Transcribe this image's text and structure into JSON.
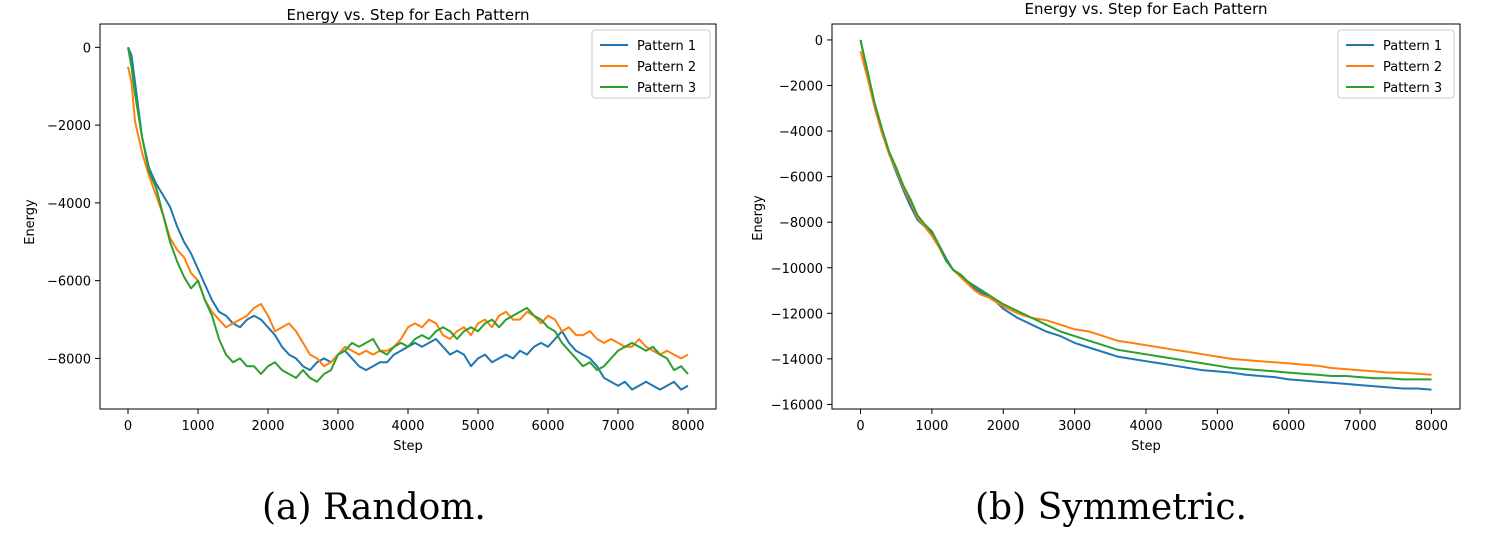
{
  "captions": {
    "left": "(a) Random.",
    "right": "(b) Symmetric."
  },
  "colors": {
    "pattern1": "#1f77b4",
    "pattern2": "#ff7f0e",
    "pattern3": "#2ca02c"
  },
  "chart_data": [
    {
      "type": "line",
      "title": "Energy vs. Step for Each Pattern",
      "xlabel": "Step",
      "ylabel": "Energy",
      "xlim": [
        -400,
        8400
      ],
      "ylim": [
        -9300,
        600
      ],
      "xticks": [
        0,
        1000,
        2000,
        3000,
        4000,
        5000,
        6000,
        7000,
        8000
      ],
      "yticks": [
        0,
        -2000,
        -4000,
        -6000,
        -8000
      ],
      "ytick_labels": [
        "0",
        "−2000",
        "−4000",
        "−6000",
        "−8000"
      ],
      "legend": "top-right",
      "grid": false,
      "series": [
        {
          "name": "Pattern 1",
          "color": "#1f77b4",
          "x": [
            0,
            50,
            100,
            200,
            300,
            400,
            500,
            600,
            700,
            800,
            900,
            1000,
            1100,
            1200,
            1300,
            1400,
            1500,
            1600,
            1700,
            1800,
            1900,
            2000,
            2100,
            2200,
            2300,
            2400,
            2500,
            2600,
            2700,
            2800,
            2900,
            3000,
            3100,
            3200,
            3300,
            3400,
            3500,
            3600,
            3700,
            3800,
            3900,
            4000,
            4100,
            4200,
            4300,
            4400,
            4500,
            4600,
            4700,
            4800,
            4900,
            5000,
            5100,
            5200,
            5300,
            5400,
            5500,
            5600,
            5700,
            5800,
            5900,
            6000,
            6100,
            6200,
            6300,
            6400,
            6500,
            6600,
            6700,
            6800,
            6900,
            7000,
            7100,
            7200,
            7300,
            7400,
            7500,
            7600,
            7700,
            7800,
            7900,
            8000
          ],
          "y": [
            0,
            -200,
            -900,
            -2300,
            -3100,
            -3500,
            -3800,
            -4100,
            -4600,
            -5000,
            -5300,
            -5700,
            -6100,
            -6500,
            -6800,
            -6900,
            -7100,
            -7200,
            -7000,
            -6900,
            -7000,
            -7200,
            -7400,
            -7700,
            -7900,
            -8000,
            -8200,
            -8300,
            -8100,
            -8000,
            -8100,
            -7900,
            -7800,
            -8000,
            -8200,
            -8300,
            -8200,
            -8100,
            -8100,
            -7900,
            -7800,
            -7700,
            -7600,
            -7700,
            -7600,
            -7500,
            -7700,
            -7900,
            -7800,
            -7900,
            -8200,
            -8000,
            -7900,
            -8100,
            -8000,
            -7900,
            -8000,
            -7800,
            -7900,
            -7700,
            -7600,
            -7700,
            -7500,
            -7300,
            -7600,
            -7800,
            -7900,
            -8000,
            -8200,
            -8500,
            -8600,
            -8700,
            -8600,
            -8800,
            -8700,
            -8600,
            -8700,
            -8800,
            -8700,
            -8600,
            -8800,
            -8700
          ]
        },
        {
          "name": "Pattern 2",
          "color": "#ff7f0e",
          "x": [
            0,
            50,
            100,
            200,
            300,
            400,
            500,
            600,
            700,
            800,
            900,
            1000,
            1100,
            1200,
            1300,
            1400,
            1500,
            1600,
            1700,
            1800,
            1900,
            2000,
            2100,
            2200,
            2300,
            2400,
            2500,
            2600,
            2700,
            2800,
            2900,
            3000,
            3100,
            3200,
            3300,
            3400,
            3500,
            3600,
            3700,
            3800,
            3900,
            4000,
            4100,
            4200,
            4300,
            4400,
            4500,
            4600,
            4700,
            4800,
            4900,
            5000,
            5100,
            5200,
            5300,
            5400,
            5500,
            5600,
            5700,
            5800,
            5900,
            6000,
            6100,
            6200,
            6300,
            6400,
            6500,
            6600,
            6700,
            6800,
            6900,
            7000,
            7100,
            7200,
            7300,
            7400,
            7500,
            7600,
            7700,
            7800,
            7900,
            8000
          ],
          "y": [
            -500,
            -900,
            -1900,
            -2700,
            -3300,
            -3800,
            -4300,
            -4900,
            -5200,
            -5400,
            -5800,
            -6000,
            -6500,
            -6800,
            -7000,
            -7200,
            -7100,
            -7000,
            -6900,
            -6700,
            -6600,
            -6900,
            -7300,
            -7200,
            -7100,
            -7300,
            -7600,
            -7900,
            -8000,
            -8200,
            -8100,
            -7900,
            -7700,
            -7800,
            -7900,
            -7800,
            -7900,
            -7800,
            -7800,
            -7700,
            -7500,
            -7200,
            -7100,
            -7200,
            -7000,
            -7100,
            -7400,
            -7500,
            -7300,
            -7200,
            -7400,
            -7100,
            -7000,
            -7200,
            -6900,
            -6800,
            -7000,
            -7000,
            -6800,
            -6900,
            -7100,
            -6900,
            -7000,
            -7300,
            -7200,
            -7400,
            -7400,
            -7300,
            -7500,
            -7600,
            -7500,
            -7600,
            -7700,
            -7700,
            -7500,
            -7700,
            -7800,
            -7900,
            -7800,
            -7900,
            -8000,
            -7900
          ]
        },
        {
          "name": "Pattern 3",
          "color": "#2ca02c",
          "x": [
            0,
            50,
            100,
            200,
            300,
            400,
            500,
            600,
            700,
            800,
            900,
            1000,
            1100,
            1200,
            1300,
            1400,
            1500,
            1600,
            1700,
            1800,
            1900,
            2000,
            2100,
            2200,
            2300,
            2400,
            2500,
            2600,
            2700,
            2800,
            2900,
            3000,
            3100,
            3200,
            3300,
            3400,
            3500,
            3600,
            3700,
            3800,
            3900,
            4000,
            4100,
            4200,
            4300,
            4400,
            4500,
            4600,
            4700,
            4800,
            4900,
            5000,
            5100,
            5200,
            5300,
            5400,
            5500,
            5600,
            5700,
            5800,
            5900,
            6000,
            6100,
            6200,
            6300,
            6400,
            6500,
            6600,
            6700,
            6800,
            6900,
            7000,
            7100,
            7200,
            7300,
            7400,
            7500,
            7600,
            7700,
            7800,
            7900,
            8000
          ],
          "y": [
            0,
            -500,
            -1200,
            -2300,
            -3200,
            -3600,
            -4300,
            -5000,
            -5500,
            -5900,
            -6200,
            -6000,
            -6500,
            -6900,
            -7500,
            -7900,
            -8100,
            -8000,
            -8200,
            -8200,
            -8400,
            -8200,
            -8100,
            -8300,
            -8400,
            -8500,
            -8300,
            -8500,
            -8600,
            -8400,
            -8300,
            -7900,
            -7800,
            -7600,
            -7700,
            -7600,
            -7500,
            -7800,
            -7900,
            -7700,
            -7600,
            -7700,
            -7500,
            -7400,
            -7500,
            -7300,
            -7200,
            -7300,
            -7500,
            -7300,
            -7200,
            -7300,
            -7100,
            -7000,
            -7200,
            -7000,
            -6900,
            -6800,
            -6700,
            -6900,
            -7000,
            -7200,
            -7300,
            -7600,
            -7800,
            -8000,
            -8200,
            -8100,
            -8300,
            -8200,
            -8000,
            -7800,
            -7700,
            -7600,
            -7700,
            -7800,
            -7700,
            -7900,
            -8000,
            -8300,
            -8200,
            -8400
          ]
        }
      ]
    },
    {
      "type": "line",
      "title": "Energy vs. Step for Each Pattern",
      "xlabel": "Step",
      "ylabel": "Energy",
      "xlim": [
        -400,
        8400
      ],
      "ylim": [
        -16200,
        700
      ],
      "xticks": [
        0,
        1000,
        2000,
        3000,
        4000,
        5000,
        6000,
        7000,
        8000
      ],
      "yticks": [
        0,
        -2000,
        -4000,
        -6000,
        -8000,
        -10000,
        -12000,
        -14000,
        -16000
      ],
      "ytick_labels": [
        "0",
        "−2000",
        "−4000",
        "−6000",
        "−8000",
        "−10000",
        "−12000",
        "−14000",
        "−16000"
      ],
      "legend": "top-right",
      "grid": false,
      "series": [
        {
          "name": "Pattern 1",
          "color": "#1f77b4",
          "x": [
            0,
            100,
            200,
            300,
            400,
            500,
            600,
            700,
            800,
            900,
            1000,
            1100,
            1200,
            1300,
            1400,
            1500,
            1600,
            1700,
            1800,
            1900,
            2000,
            2200,
            2400,
            2600,
            2800,
            3000,
            3200,
            3400,
            3600,
            3800,
            4000,
            4200,
            4400,
            4600,
            4800,
            5000,
            5200,
            5400,
            5600,
            5800,
            6000,
            6200,
            6400,
            6600,
            6800,
            7000,
            7200,
            7400,
            7600,
            7800,
            8000
          ],
          "y": [
            0,
            -1500,
            -2900,
            -4000,
            -5000,
            -5800,
            -6600,
            -7300,
            -7900,
            -8200,
            -8500,
            -9000,
            -9600,
            -10100,
            -10300,
            -10600,
            -10900,
            -11100,
            -11300,
            -11500,
            -11800,
            -12200,
            -12500,
            -12800,
            -13000,
            -13300,
            -13500,
            -13700,
            -13900,
            -14000,
            -14100,
            -14200,
            -14300,
            -14400,
            -14500,
            -14550,
            -14600,
            -14700,
            -14750,
            -14800,
            -14900,
            -14950,
            -15000,
            -15050,
            -15100,
            -15150,
            -15200,
            -15250,
            -15300,
            -15300,
            -15350
          ]
        },
        {
          "name": "Pattern 2",
          "color": "#ff7f0e",
          "x": [
            0,
            100,
            200,
            300,
            400,
            500,
            600,
            700,
            800,
            900,
            1000,
            1100,
            1200,
            1300,
            1400,
            1500,
            1600,
            1700,
            1800,
            1900,
            2000,
            2200,
            2400,
            2600,
            2800,
            3000,
            3200,
            3400,
            3600,
            3800,
            4000,
            4200,
            4400,
            4600,
            4800,
            5000,
            5200,
            5400,
            5600,
            5800,
            6000,
            6200,
            6400,
            6600,
            6800,
            7000,
            7200,
            7400,
            7600,
            7800,
            8000
          ],
          "y": [
            -500,
            -1700,
            -3000,
            -4100,
            -5000,
            -5700,
            -6500,
            -7100,
            -7800,
            -8200,
            -8600,
            -9100,
            -9700,
            -10100,
            -10400,
            -10700,
            -11000,
            -11200,
            -11300,
            -11500,
            -11700,
            -12000,
            -12200,
            -12300,
            -12500,
            -12700,
            -12800,
            -13000,
            -13200,
            -13300,
            -13400,
            -13500,
            -13600,
            -13700,
            -13800,
            -13900,
            -14000,
            -14050,
            -14100,
            -14150,
            -14200,
            -14250,
            -14300,
            -14400,
            -14450,
            -14500,
            -14550,
            -14600,
            -14600,
            -14650,
            -14700
          ]
        },
        {
          "name": "Pattern 3",
          "color": "#2ca02c",
          "x": [
            0,
            100,
            200,
            300,
            400,
            500,
            600,
            700,
            800,
            900,
            1000,
            1100,
            1200,
            1300,
            1400,
            1500,
            1600,
            1700,
            1800,
            1900,
            2000,
            2200,
            2400,
            2600,
            2800,
            3000,
            3200,
            3400,
            3600,
            3800,
            4000,
            4200,
            4400,
            4600,
            4800,
            5000,
            5200,
            5400,
            5600,
            5800,
            6000,
            6200,
            6400,
            6600,
            6800,
            7000,
            7200,
            7400,
            7600,
            7800,
            8000
          ],
          "y": [
            0,
            -1400,
            -2800,
            -3900,
            -4900,
            -5600,
            -6400,
            -7000,
            -7700,
            -8100,
            -8400,
            -9000,
            -9700,
            -10100,
            -10300,
            -10600,
            -10800,
            -11000,
            -11200,
            -11400,
            -11600,
            -11900,
            -12200,
            -12500,
            -12800,
            -13000,
            -13200,
            -13400,
            -13600,
            -13700,
            -13800,
            -13900,
            -14000,
            -14100,
            -14200,
            -14300,
            -14400,
            -14450,
            -14500,
            -14550,
            -14600,
            -14650,
            -14700,
            -14750,
            -14750,
            -14800,
            -14850,
            -14850,
            -14900,
            -14900,
            -14900
          ]
        }
      ]
    }
  ]
}
